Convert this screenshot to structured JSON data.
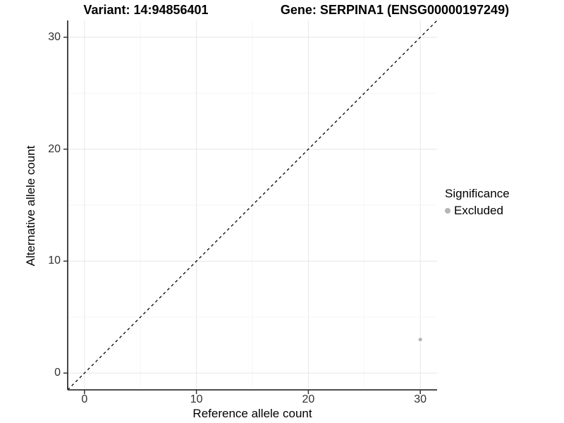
{
  "header": {
    "variant_title": "Variant: 14:94856401",
    "gene_title": "Gene: SERPINA1 (ENSG00000197249)"
  },
  "chart_data": {
    "type": "scatter",
    "titles": [
      "Variant: 14:94856401",
      "Gene: SERPINA1 (ENSG00000197249)"
    ],
    "xlabel": "Reference allele count",
    "ylabel": "Alternative allele count",
    "xlim": [
      -1.5,
      31.5
    ],
    "ylim": [
      -1.5,
      31.5
    ],
    "x_ticks": [
      0,
      10,
      20,
      30
    ],
    "y_ticks": [
      0,
      10,
      20,
      30
    ],
    "x_minor_ticks": [
      5,
      15,
      25
    ],
    "y_minor_ticks": [
      5,
      15,
      25
    ],
    "grid": true,
    "legend": {
      "title": "Significance",
      "position": "right",
      "items": [
        {
          "label": "Excluded",
          "color": "#b5b5b5"
        }
      ]
    },
    "series": [
      {
        "name": "Excluded",
        "color": "#b5b5b5",
        "points": [
          {
            "x": 30,
            "y": 3
          }
        ]
      }
    ],
    "reference_line": {
      "type": "identity",
      "equation": "y = x",
      "style": "dashed",
      "color": "#000000"
    }
  },
  "colors": {
    "background": "#ffffff",
    "grid_major": "#e9e9e9",
    "grid_minor": "#f5f5f5",
    "axis_line": "#333333",
    "tick_text": "#303030",
    "point": "#b5b5b5"
  }
}
